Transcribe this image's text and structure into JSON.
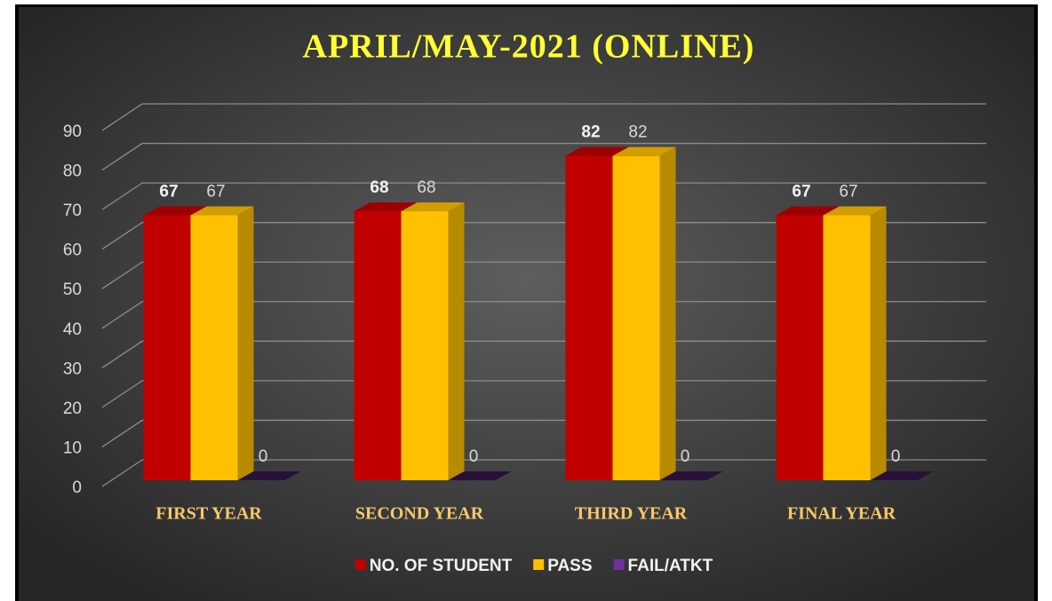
{
  "chart_data": {
    "type": "bar3d",
    "title": "APRIL/MAY-2021 (ONLINE)",
    "categories": [
      "FIRST YEAR",
      "SECOND YEAR",
      "THIRD YEAR",
      "FINAL YEAR"
    ],
    "series": [
      {
        "name": "NO. OF STUDENT",
        "color": "#c00000",
        "values": [
          67,
          68,
          82,
          67
        ]
      },
      {
        "name": "PASS",
        "color": "#ffc000",
        "values": [
          67,
          68,
          82,
          67
        ]
      },
      {
        "name": "FAIL/ATKT",
        "color": "#7030a0",
        "values": [
          0,
          0,
          0,
          0
        ]
      }
    ],
    "ylim": [
      0,
      90
    ],
    "yticks": [
      0,
      10,
      20,
      30,
      40,
      50,
      60,
      70,
      80,
      90
    ],
    "grid": true,
    "legend": "bottom"
  }
}
